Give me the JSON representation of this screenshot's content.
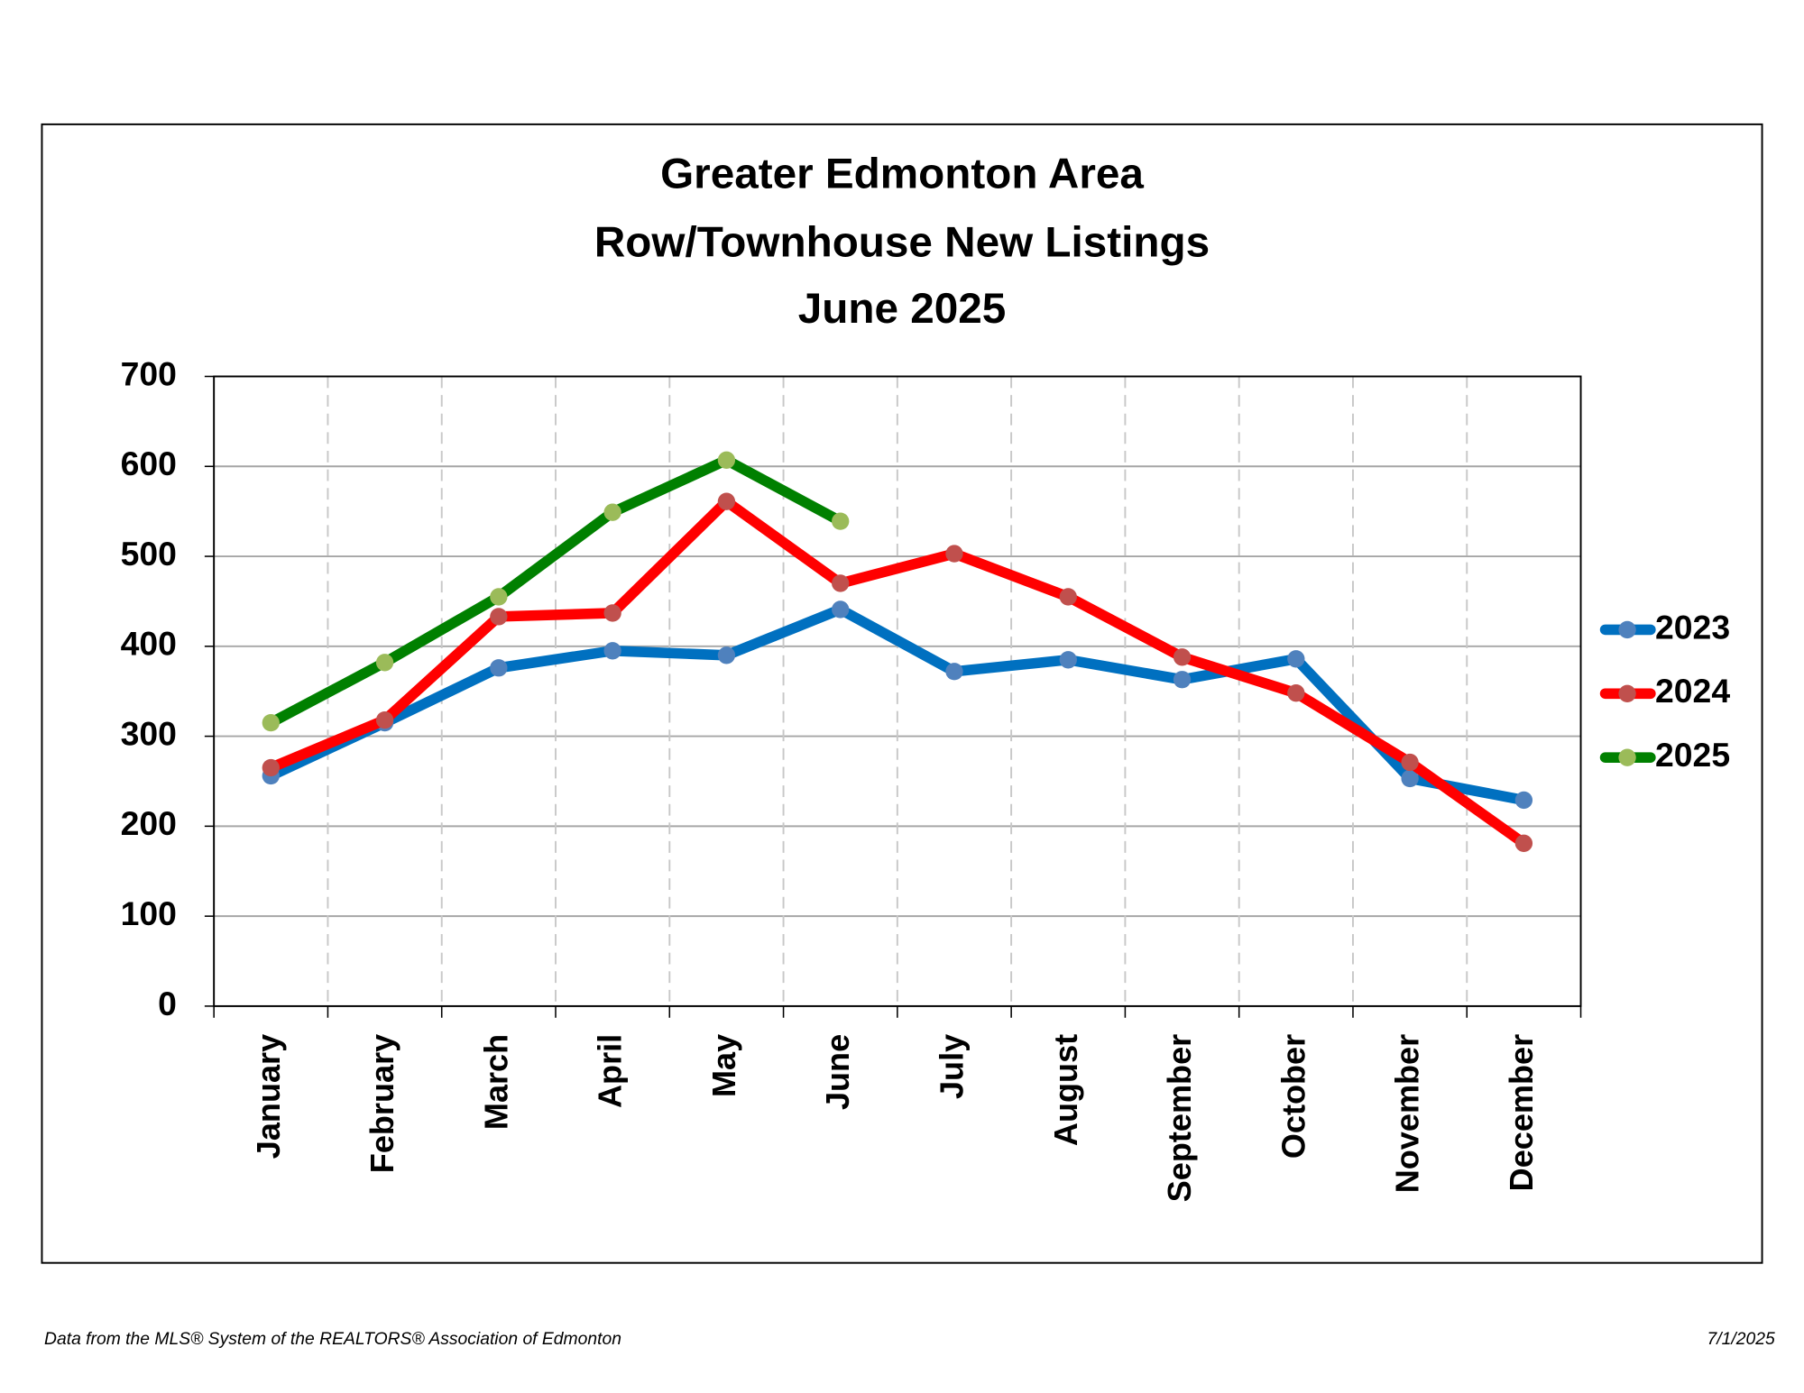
{
  "chart_data": {
    "type": "line",
    "title": [
      "Greater Edmonton Area",
      "Row/Townhouse New Listings",
      "June 2025"
    ],
    "categories": [
      "January",
      "February",
      "March",
      "April",
      "May",
      "June",
      "July",
      "August",
      "September",
      "October",
      "November",
      "December"
    ],
    "series": [
      {
        "name": "2023",
        "color": "#0070c0",
        "marker_color": "#4f81bd",
        "values": [
          256,
          315,
          376,
          395,
          390,
          441,
          372,
          385,
          363,
          386,
          253,
          229
        ]
      },
      {
        "name": "2024",
        "color": "#ff0000",
        "marker_color": "#c0504d",
        "values": [
          265,
          318,
          433,
          437,
          561,
          470,
          503,
          455,
          388,
          348,
          271,
          181
        ]
      },
      {
        "name": "2025",
        "color": "#008000",
        "marker_color": "#9bbb59",
        "values": [
          315,
          382,
          455,
          549,
          607,
          539,
          null,
          null,
          null,
          null,
          null,
          null
        ]
      }
    ],
    "ylim": [
      0,
      700
    ],
    "yticks": [
      0,
      100,
      200,
      300,
      400,
      500,
      600,
      700
    ],
    "grid": true,
    "legend": "right",
    "source": "Data from the MLS® System of the REALTORS® Association of Edmonton",
    "date": "7/1/2025"
  }
}
